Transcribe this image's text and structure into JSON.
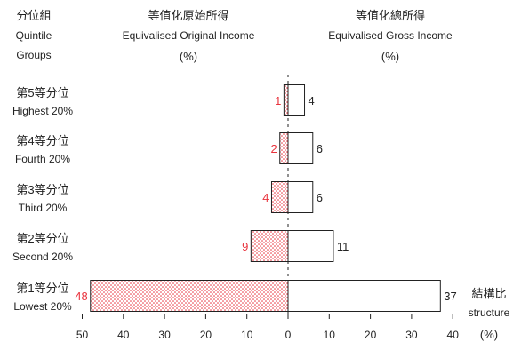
{
  "chart_data": {
    "type": "bar",
    "orientation": "horizontal",
    "layout": "back-to-back",
    "categories": [
      {
        "zh": "第5等分位",
        "en": "Highest 20%"
      },
      {
        "zh": "第4等分位",
        "en": "Fourth 20%"
      },
      {
        "zh": "第3等分位",
        "en": "Third 20%"
      },
      {
        "zh": "第2等分位",
        "en": "Second 20%"
      },
      {
        "zh": "第1等分位",
        "en": "Lowest 20%"
      }
    ],
    "category_header": {
      "zh": "分位組",
      "en_line1": "Quintile",
      "en_line2": "Groups"
    },
    "series": [
      {
        "name_zh": "等值化原始所得",
        "name_en": "Equivalised Original Income",
        "unit": "(%)",
        "direction": "left",
        "values": [
          1,
          2,
          4,
          9,
          48
        ],
        "color": "#e8323c",
        "fill": "dotted"
      },
      {
        "name_zh": "等值化總所得",
        "name_en": "Equivalised Gross Income",
        "unit": "(%)",
        "direction": "right",
        "values": [
          4,
          6,
          6,
          11,
          37
        ],
        "color": "#222222",
        "fill": "none"
      }
    ],
    "x_ticks": [
      "50",
      "40",
      "30",
      "20",
      "10",
      "0",
      "10",
      "20",
      "30",
      "40"
    ],
    "xlim_left": 50,
    "xlim_right": 40,
    "axis_note": {
      "zh": "結構比",
      "en": "structure",
      "unit": "(%)"
    },
    "grid": false
  }
}
